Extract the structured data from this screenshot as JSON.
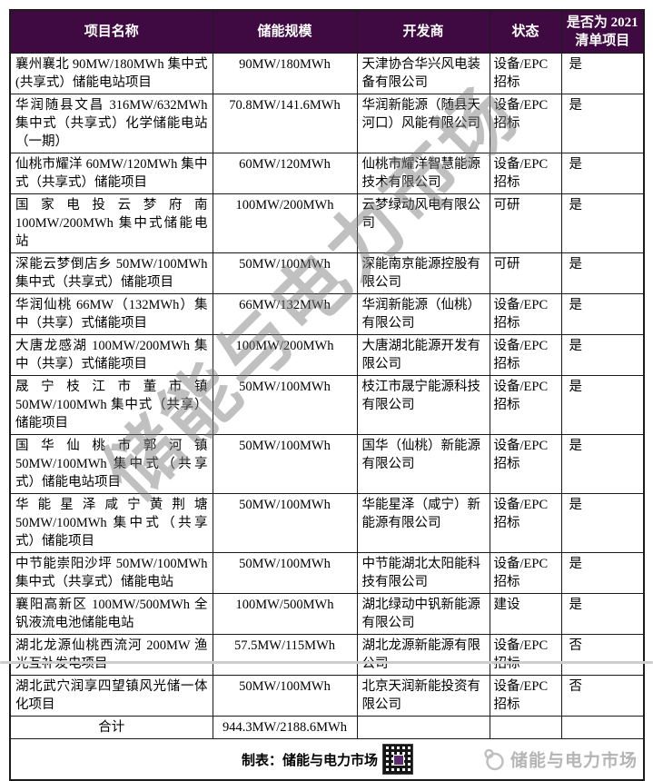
{
  "watermark": "储能与电力市场",
  "table": {
    "columns": [
      "项目名称",
      "储能规模",
      "开发商",
      "状态",
      "是否为 2021 清单项目"
    ],
    "rows": [
      {
        "name": "襄州襄北 90MW/180MWh 集中式(共享式）储能电站项目",
        "scale": "90MW/180MWh",
        "developer": "天津协合华兴风电装备有限公司",
        "status": "设备/EPC 招标",
        "in_2021_list": "是"
      },
      {
        "name": "华润随县文昌 316MW/632MWh 集中式（共享式）化学储能电站（一期）",
        "scale": "70.8MW/141.6MWh",
        "developer": "华润新能源（随县天河口）风能有限公司",
        "status": "设备/EPC 招标",
        "in_2021_list": "是"
      },
      {
        "name": "仙桃市耀洋 60MW/120MWh 集中式（共享式）储能项目",
        "scale": "60MW/120MWh",
        "developer": "仙桃市耀洋智慧能源技术有限公司",
        "status": "设备/EPC 招标",
        "in_2021_list": "是"
      },
      {
        "name": "国家电投云梦府南 100MW/200MWh 集中式储能电站",
        "scale": "100MW/200MWh",
        "developer": "云梦绿动风电有限公司",
        "status": "可研",
        "in_2021_list": "是"
      },
      {
        "name": "深能云梦倒店乡 50MW/100MWh 集中式（共享式）储能项目",
        "scale": "50MW/100MWh",
        "developer": "深能南京能源控股有限公司",
        "status": "可研",
        "in_2021_list": "是"
      },
      {
        "name": "华润仙桃 66MW（132MWh）集中（共享）式储能项目",
        "scale": "66MW/132MWh",
        "developer": "华润新能源（仙桃）有限公司",
        "status": "设备/EPC 招标",
        "in_2021_list": "是"
      },
      {
        "name": "大唐龙感湖 100MW/200MWh 集中（共享）式储能项目",
        "scale": "100MW/200MWh",
        "developer": "大唐湖北能源开发有限公司",
        "status": "设备/EPC 招标",
        "in_2021_list": "是"
      },
      {
        "name": "晟宁枝江市董市镇 50MW/100MWh 集中式（共享）储能项目",
        "scale": "50MW/100MWh",
        "developer": "枝江市晟宁能源科技有限公司",
        "status": "设备/EPC 招标",
        "in_2021_list": "是"
      },
      {
        "name": "国华仙桃市郭河镇 50MW/100MWh 集中式（共享式）储能电站项目",
        "scale": "50MW/100MWh",
        "developer": "国华（仙桃）新能源有限公司",
        "status": "设备/EPC 招标",
        "in_2021_list": "是"
      },
      {
        "name": "华能星泽咸宁黄荆塘 50MW/100MWh 集中式（共享式）储能项目",
        "scale": "50MW/100MWh",
        "developer": "华能星泽（咸宁）新能源有限公司",
        "status": "设备/EPC 招标",
        "in_2021_list": "是"
      },
      {
        "name": "中节能崇阳沙坪 50MW/100MWh 集中式（共享式）储能电站",
        "scale": "50MW/100MWh",
        "developer": "中节能湖北太阳能科技有限公司",
        "status": "设备/EPC 招标",
        "in_2021_list": "是"
      },
      {
        "name": "襄阳高新区 100MW/500MWh 全钒液流电池储能电站",
        "scale": "100MW/500MWh",
        "developer": "湖北绿动中钒新能源有限公司",
        "status": "建设",
        "in_2021_list": "是"
      },
      {
        "name": "湖北龙源仙桃西流河 200MW 渔光互补发电项目",
        "scale": "57.5MW/115MWh",
        "developer": "湖北龙源新能源有限公司",
        "status": "设备/EPC 招标",
        "in_2021_list": "否"
      },
      {
        "name": "湖北武穴润享四望镇风光储一体化项目",
        "scale": "50MW/100MWh",
        "developer": "北京天润新能投资有限公司",
        "status": "设备/EPC 招标",
        "in_2021_list": "否"
      }
    ],
    "total": {
      "label": "合计",
      "scale": "944.3MW/2188.6MWh"
    }
  },
  "footer": {
    "credit": "制表：储能与电力市场",
    "logo_text": "储能与电力市场"
  },
  "colors": {
    "header_bg": "#3F0A41",
    "header_text": "#FFFFFF",
    "border": "#1B1B1B",
    "watermark_grey": "#7D7D7D",
    "qr_accent": "#5B2C6F",
    "logo_grey": "#B5B5B5"
  }
}
